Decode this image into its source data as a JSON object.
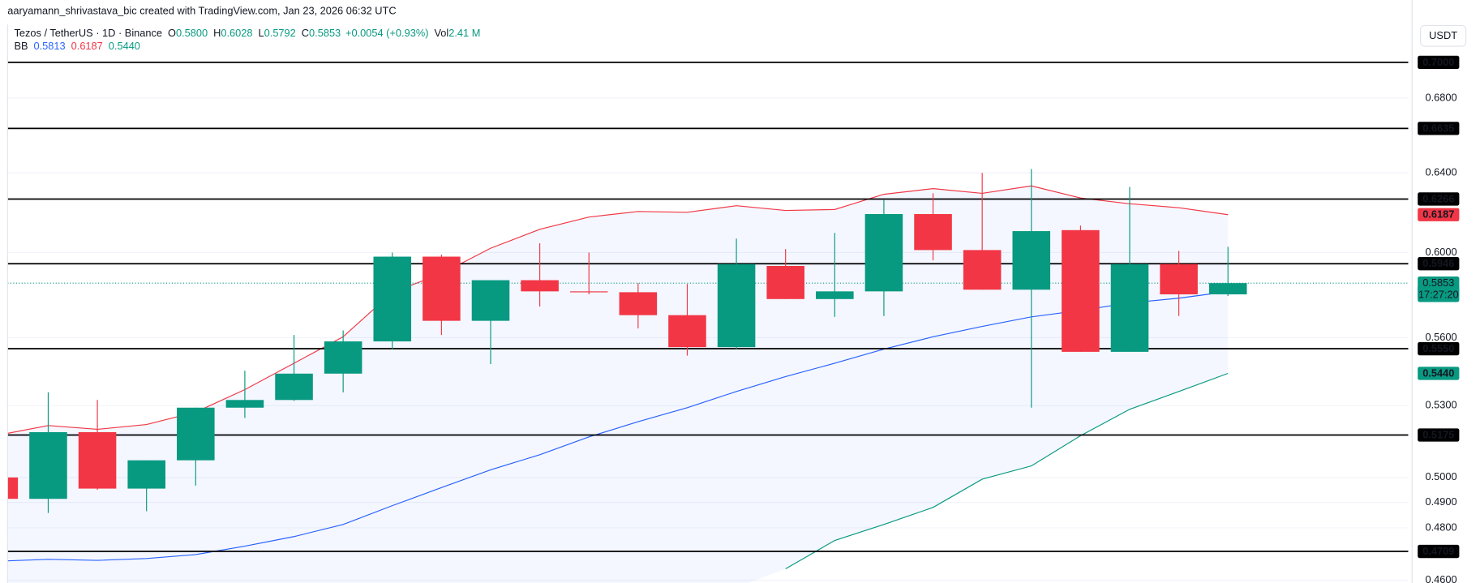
{
  "header": "aaryamann_shrivastava_bic created with TradingView.com, Jan 23, 2026 06:32 UTC",
  "chart_data": {
    "type": "candlestick",
    "currency": "USDT",
    "legend": {
      "symbol": "Tezos / TetherUS · 1D · Binance",
      "ohlc": [
        {
          "key": "O",
          "value": "0.5800"
        },
        {
          "key": "H",
          "value": "0.6028"
        },
        {
          "key": "L",
          "value": "0.5792"
        },
        {
          "key": "C",
          "value": "0.5853"
        }
      ],
      "change": "+0.0054 (+0.93%)",
      "volume": {
        "key": "Vol",
        "value": "2.41 M"
      }
    },
    "up_color": "#089981",
    "down_color": "#f23645",
    "categories": [
      null,
      null,
      null,
      null,
      null,
      null,
      null,
      null,
      null,
      null,
      null,
      null,
      null,
      null,
      null,
      null,
      null,
      null,
      null,
      null,
      null,
      null,
      null,
      null,
      null,
      null
    ],
    "open": [
      0.5,
      0.4914,
      0.5187,
      0.4955,
      0.507,
      0.5291,
      0.5324,
      0.5439,
      0.5583,
      0.598,
      0.5677,
      0.5867,
      0.5814,
      0.581,
      0.5703,
      0.5557,
      0.5935,
      0.5778,
      0.5814,
      0.619,
      0.6012,
      0.5822,
      0.611,
      0.5536,
      0.5944,
      0.58
    ],
    "high": [
      0.5005,
      0.5357,
      0.5324,
      0.507,
      0.5291,
      0.5452,
      0.5612,
      0.5633,
      0.6,
      0.599,
      0.5867,
      0.6045,
      0.6,
      0.5853,
      0.5849,
      0.6068,
      0.6017,
      0.6096,
      0.6261,
      0.6295,
      0.64,
      0.642,
      0.6133,
      0.6328,
      0.6008,
      0.6028
    ],
    "low": [
      0.491,
      0.4858,
      0.495,
      0.4865,
      0.4967,
      0.5247,
      0.532,
      0.5357,
      0.5548,
      0.5612,
      0.5481,
      0.5743,
      0.58,
      0.5642,
      0.5519,
      0.5548,
      0.5778,
      0.5695,
      0.5699,
      0.5962,
      0.5822,
      0.5291,
      0.5536,
      0.5536,
      0.5699,
      0.5792
    ],
    "close": [
      0.4914,
      0.5187,
      0.4955,
      0.507,
      0.5291,
      0.5324,
      0.5439,
      0.5583,
      0.598,
      0.5677,
      0.5867,
      0.5814,
      0.581,
      0.5703,
      0.5557,
      0.5944,
      0.5778,
      0.5814,
      0.619,
      0.6012,
      0.5822,
      0.6105,
      0.5536,
      0.5944,
      0.58,
      0.5853
    ],
    "bb": {
      "name": "BB",
      "upper": [
        0.5175,
        0.5215,
        0.5199,
        0.5219,
        0.5272,
        0.5369,
        0.5485,
        0.5604,
        0.5809,
        0.5898,
        0.6021,
        0.6114,
        0.6175,
        0.6203,
        0.6199,
        0.6232,
        0.6208,
        0.6213,
        0.629,
        0.6319,
        0.6295,
        0.6333,
        0.6271,
        0.6242,
        0.6222,
        0.6187
      ],
      "middle": [
        0.4672,
        0.4679,
        0.4675,
        0.4682,
        0.4697,
        0.4729,
        0.4766,
        0.4813,
        0.4887,
        0.4959,
        0.5031,
        0.5093,
        0.5167,
        0.5231,
        0.5291,
        0.5361,
        0.5426,
        0.5485,
        0.5548,
        0.5604,
        0.5651,
        0.5695,
        0.5725,
        0.576,
        0.5782,
        0.5813
      ],
      "lower": [
        null,
        null,
        null,
        null,
        null,
        null,
        null,
        null,
        null,
        null,
        null,
        null,
        null,
        null,
        null,
        null,
        0.4643,
        0.4751,
        0.4813,
        0.488,
        0.4993,
        0.5047,
        0.5172,
        0.5284,
        0.5361,
        0.544
      ],
      "colors": {
        "upper": "#f23645",
        "middle": "#2962ff",
        "lower": "#089981"
      },
      "last": [
        {
          "value": 0.5813,
          "label": "0.5813",
          "color": "#2962ff"
        },
        {
          "value": 0.6187,
          "label": "0.6187",
          "color": "#f23645"
        },
        {
          "value": 0.544,
          "label": "0.5440",
          "color": "#089981"
        }
      ]
    },
    "last_price": {
      "value": 0.5853,
      "label": "0.5853",
      "countdown": "17:27:20"
    },
    "levels": [
      {
        "value": 0.7,
        "label": "0.7000"
      },
      {
        "value": 0.6635,
        "label": "0.6635"
      },
      {
        "value": 0.6266,
        "label": "0.6266"
      },
      {
        "value": 0.5946,
        "label": "0.5946"
      },
      {
        "value": 0.555,
        "label": "0.5550"
      },
      {
        "value": 0.5175,
        "label": "0.5175"
      },
      {
        "value": 0.4709,
        "label": "0.4709"
      }
    ],
    "log_scale": true,
    "grid": true,
    "ylim": [
      0.459,
      0.7218
    ],
    "yticks": [
      {
        "value": 0.68,
        "label": "0.6800"
      },
      {
        "value": 0.64,
        "label": "0.6400"
      },
      {
        "value": 0.6,
        "label": "0.6000"
      },
      {
        "value": 0.56,
        "label": "0.5600"
      },
      {
        "value": 0.53,
        "label": "0.5300"
      },
      {
        "value": 0.5,
        "label": "0.5000"
      },
      {
        "value": 0.49,
        "label": "0.4900"
      },
      {
        "value": 0.48,
        "label": "0.4800"
      },
      {
        "value": 0.46,
        "label": "0.4600"
      }
    ]
  }
}
